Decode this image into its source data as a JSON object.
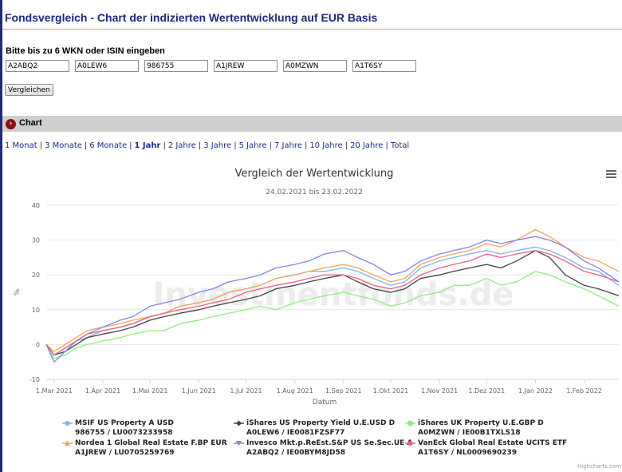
{
  "page": {
    "title": "Fondsvergleich - Chart der indizierten Wertentwicklung auf EUR Basis"
  },
  "form": {
    "label": "Bitte bis zu 6 WKN oder ISIN eingeben",
    "inputs": [
      "A2ABQ2",
      "A0LEW6",
      "986755",
      "A1JREW",
      "A0MZWN",
      "A1T6SY"
    ],
    "button_label": "Vergleichen"
  },
  "section": {
    "title": "Chart",
    "icon": "chevron-right-icon"
  },
  "periods": [
    {
      "label": "1 Monat",
      "active": false
    },
    {
      "label": "3 Monate",
      "active": false
    },
    {
      "label": "6 Monate",
      "active": false
    },
    {
      "label": "1 Jahr",
      "active": true
    },
    {
      "label": "2 Jahre",
      "active": false
    },
    {
      "label": "3 Jahre",
      "active": false
    },
    {
      "label": "5 Jahre",
      "active": false
    },
    {
      "label": "7 Jahre",
      "active": false
    },
    {
      "label": "10 Jahre",
      "active": false
    },
    {
      "label": "20 Jahre",
      "active": false
    },
    {
      "label": "Total",
      "active": false
    }
  ],
  "chart_data": {
    "type": "line",
    "title": "Vergleich der Wertentwicklung",
    "subtitle": "24.02.2021 bis 23.02.2022",
    "xlabel": "Datum",
    "ylabel": "%",
    "ylim": [
      -10,
      40
    ],
    "yticks": [
      -10,
      0,
      10,
      20,
      30,
      40
    ],
    "xlim": [
      "2021-02-24",
      "2022-02-23"
    ],
    "xticks": [
      {
        "date": "2021-03-01",
        "label": "1.Mar 2021"
      },
      {
        "date": "2021-04-01",
        "label": "1.Apr 2021"
      },
      {
        "date": "2021-05-01",
        "label": "1.Mai 2021"
      },
      {
        "date": "2021-06-01",
        "label": "1.Jun 2021"
      },
      {
        "date": "2021-07-01",
        "label": "1.Jul 2021"
      },
      {
        "date": "2021-08-01",
        "label": "1.Aug 2021"
      },
      {
        "date": "2021-09-01",
        "label": "1.Sep 2021"
      },
      {
        "date": "2021-10-01",
        "label": "1.Okt 2021"
      },
      {
        "date": "2021-11-01",
        "label": "1.Nov 2021"
      },
      {
        "date": "2021-12-01",
        "label": "1.Dez 2021"
      },
      {
        "date": "2022-01-01",
        "label": "1.Jan 2022"
      },
      {
        "date": "2022-02-01",
        "label": "1.Feb 2022"
      }
    ],
    "grid": true,
    "legend_position": "bottom",
    "watermark": "Investmentfonds.de",
    "credits": "Highcharts.com",
    "x": [
      "2021-02-24",
      "2021-03-01",
      "2021-03-08",
      "2021-03-15",
      "2021-03-22",
      "2021-04-01",
      "2021-04-12",
      "2021-04-20",
      "2021-05-01",
      "2021-05-10",
      "2021-05-20",
      "2021-06-01",
      "2021-06-10",
      "2021-06-20",
      "2021-07-01",
      "2021-07-10",
      "2021-07-20",
      "2021-08-01",
      "2021-08-10",
      "2021-08-20",
      "2021-09-01",
      "2021-09-10",
      "2021-09-20",
      "2021-10-01",
      "2021-10-10",
      "2021-10-20",
      "2021-11-01",
      "2021-11-10",
      "2021-11-20",
      "2021-12-01",
      "2021-12-10",
      "2021-12-20",
      "2022-01-01",
      "2022-01-10",
      "2022-01-20",
      "2022-02-01",
      "2022-02-10",
      "2022-02-23"
    ],
    "series": [
      {
        "name": "MSIF US Property A USD",
        "code": "986755 / LU0073233958",
        "color": "#7cb5ec",
        "marker": "circle",
        "values": [
          0,
          -3,
          -1,
          1,
          2,
          4,
          5,
          6,
          8,
          9,
          11,
          12,
          13,
          15,
          16,
          17,
          19,
          20,
          21,
          21,
          22,
          21,
          19,
          17,
          18,
          22,
          24,
          25,
          26,
          27,
          26,
          27,
          28,
          27,
          25,
          22,
          21,
          17
        ]
      },
      {
        "name": "iShares US Property Yield U.E.USD D",
        "code": "A0LEW6 / IE0081FZSF77",
        "color": "#434348",
        "marker": "diamond",
        "values": [
          0,
          -3,
          -2,
          0,
          2,
          3,
          4,
          5,
          7,
          8,
          9,
          10,
          11,
          12,
          13,
          14,
          16,
          17,
          18,
          19,
          20,
          18,
          16,
          15,
          16,
          19,
          20,
          21,
          22,
          23,
          22,
          24,
          27,
          25,
          20,
          17,
          16,
          14
        ]
      },
      {
        "name": "iShares UK Property U.E.GBP D",
        "code": "A0MZWN / IE00B1TXLS18",
        "color": "#90ed7d",
        "marker": "square",
        "values": [
          0,
          -4,
          -3,
          -1,
          0,
          1,
          2,
          3,
          4,
          4,
          6,
          7,
          8,
          9,
          10,
          11,
          10,
          12,
          13,
          14,
          15,
          14,
          13,
          11,
          12,
          14,
          15,
          17,
          17,
          19,
          17,
          18,
          21,
          20,
          18,
          16,
          14,
          11
        ]
      },
      {
        "name": "Nordea 1 Global Real Estate F.BP EUR",
        "code": "A1JREW / LU0705259769",
        "color": "#f7a35c",
        "marker": "triangle",
        "values": [
          0,
          -2,
          0,
          2,
          4,
          5,
          6,
          7,
          8,
          9,
          11,
          12,
          13,
          15,
          16,
          17,
          19,
          20,
          21,
          22,
          23,
          22,
          20,
          18,
          19,
          23,
          25,
          26,
          27,
          29,
          28,
          30,
          33,
          31,
          28,
          25,
          24,
          21
        ]
      },
      {
        "name": "Invesco Mkt.p.ReEst.S&P US Se.Sec.UE A",
        "code": "A2ABQ2 / IE00BYM8JD58",
        "color": "#8085e9",
        "marker": "triangle-down",
        "values": [
          0,
          -5,
          -2,
          1,
          3,
          5,
          7,
          8,
          11,
          12,
          13,
          15,
          16,
          18,
          19,
          20,
          22,
          23,
          24,
          26,
          27,
          25,
          23,
          20,
          21,
          24,
          26,
          27,
          28,
          30,
          29,
          30,
          31,
          30,
          28,
          24,
          22,
          18
        ]
      },
      {
        "name": "VanEck Global Real Estate UCITS ETF",
        "code": "A1T6SY / NL0009690239",
        "color": "#f15c80",
        "marker": "circle",
        "values": [
          0,
          -3,
          -1,
          1,
          3,
          4,
          5,
          6,
          8,
          9,
          10,
          11,
          12,
          13,
          15,
          16,
          17,
          18,
          19,
          20,
          20,
          19,
          17,
          16,
          17,
          20,
          22,
          23,
          24,
          26,
          25,
          26,
          27,
          26,
          24,
          21,
          20,
          18
        ]
      }
    ]
  }
}
